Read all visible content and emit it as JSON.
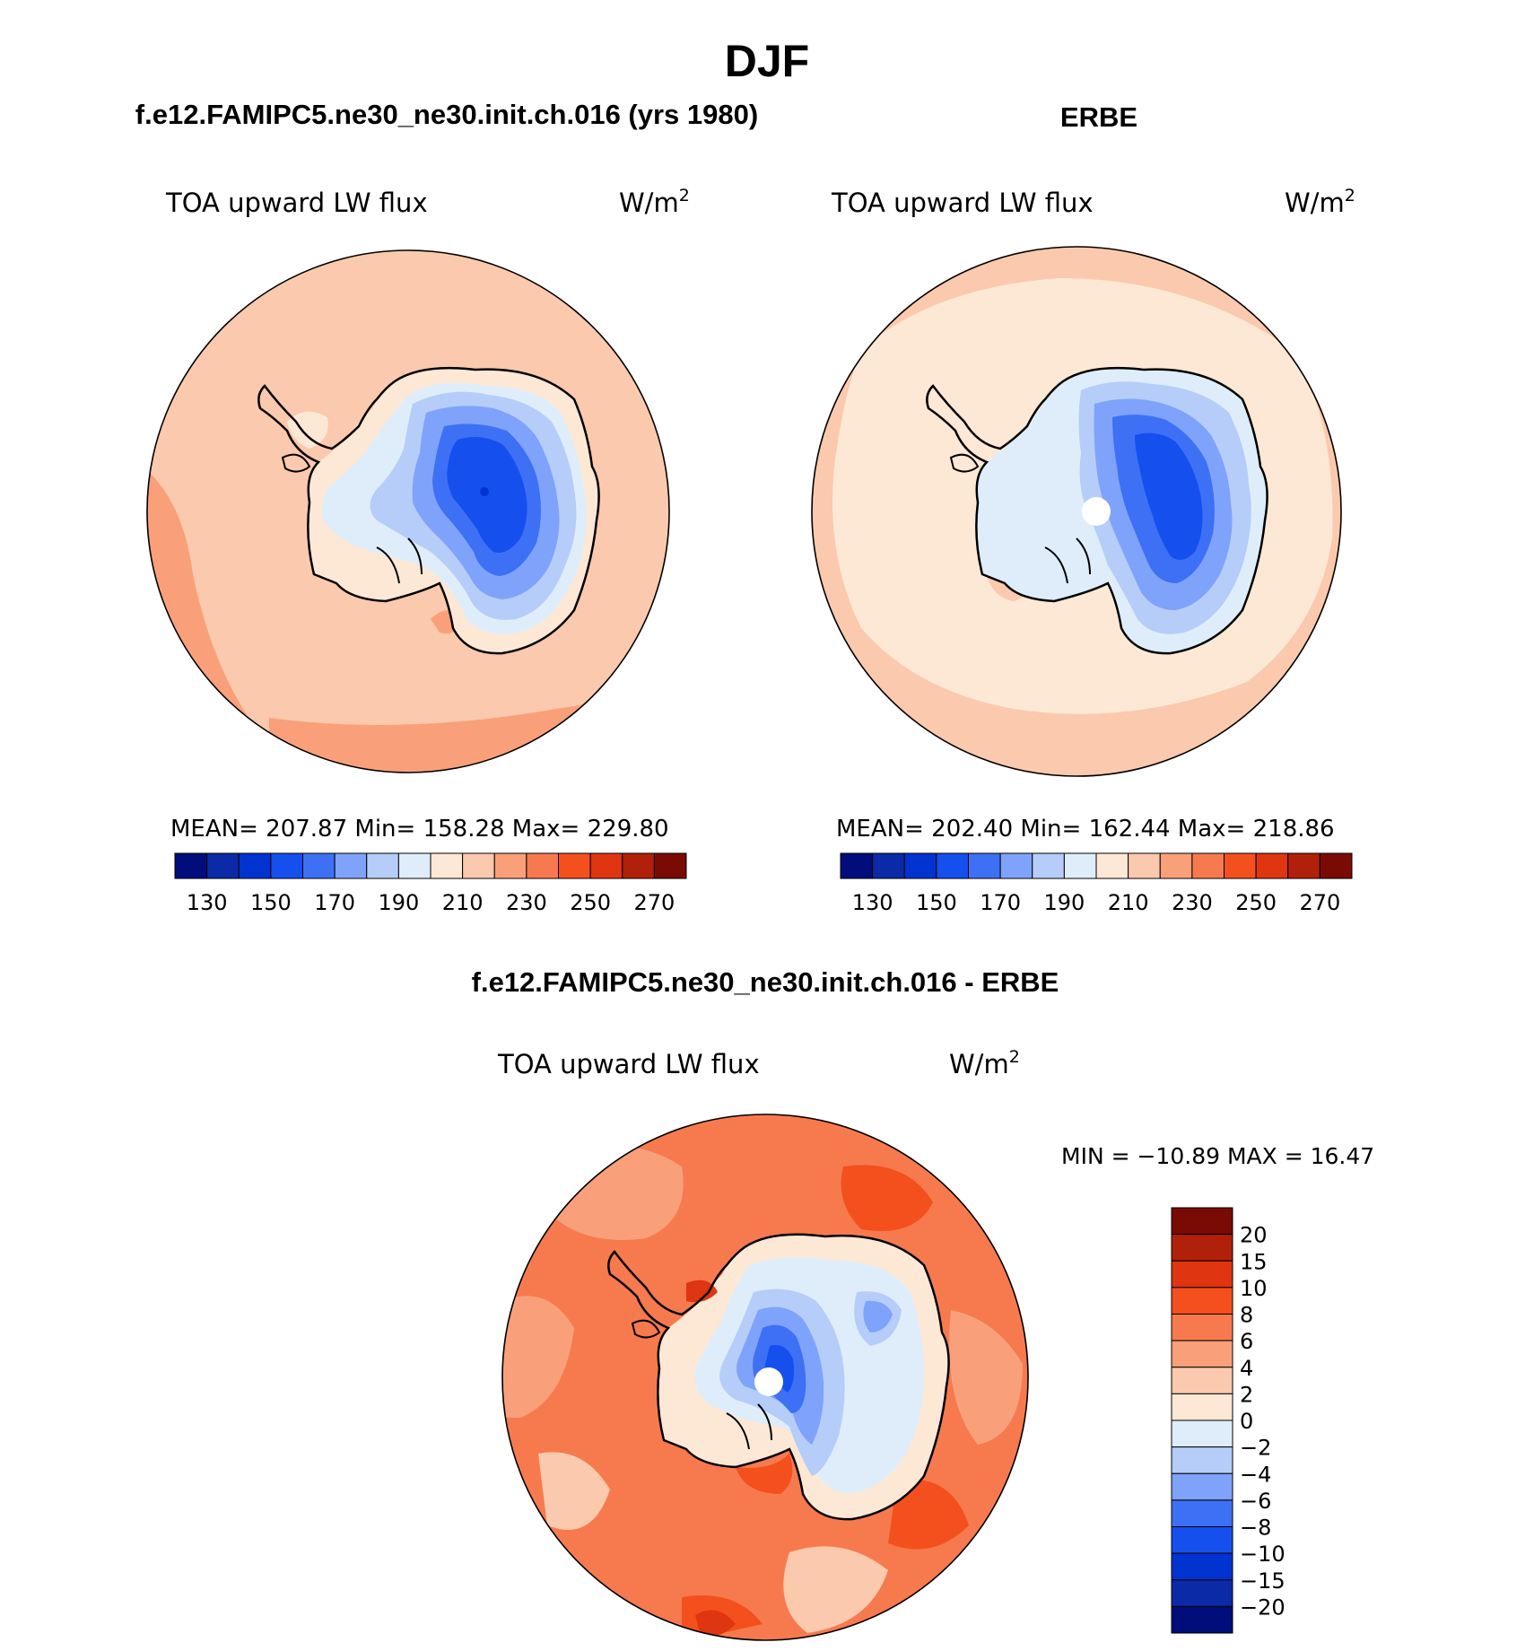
{
  "page": {
    "season": "DJF",
    "left_title": "f.e12.FAMIPC5.ne30_ne30.init.ch.016 (yrs 1980)",
    "right_title": "ERBE",
    "diff_title": "f.e12.FAMIPC5.ne30_ne30.init.ch.016 - ERBE"
  },
  "panels": {
    "model": {
      "variable": "TOA upward LW flux",
      "units": "W/m",
      "units_exp": "2",
      "stats": "MEAN= 207.87   Min= 158.28   Max= 229.80"
    },
    "obs": {
      "variable": "TOA upward LW flux",
      "units": "W/m",
      "units_exp": "2",
      "stats": "MEAN= 202.40   Min= 162.44   Max= 218.86"
    },
    "diff": {
      "variable": "TOA upward LW flux",
      "units": "W/m",
      "units_exp": "2",
      "stats": "MIN = −10.89 MAX =   16.47"
    }
  },
  "colorbars": {
    "abs": {
      "colors": [
        "#000d7a",
        "#0a2aa8",
        "#0033d0",
        "#1550ee",
        "#3d70f5",
        "#7fa3fa",
        "#b5cdf8",
        "#dfedfb",
        "#fde8d6",
        "#fbc9ad",
        "#f9a07a",
        "#f77a4e",
        "#f4501e",
        "#df3510",
        "#b0200a",
        "#7a0a04"
      ],
      "labels": [
        "130",
        "150",
        "170",
        "190",
        "210",
        "230",
        "250",
        "270"
      ]
    },
    "diff": {
      "colors": [
        "#7a0a04",
        "#b0200a",
        "#df3510",
        "#f4501e",
        "#f77a4e",
        "#f9a07a",
        "#fbc9ad",
        "#fde8d6",
        "#dfedfb",
        "#b5cdf8",
        "#7fa3fa",
        "#3d70f5",
        "#1550ee",
        "#0033d0",
        "#0a2aa8",
        "#000d7a"
      ],
      "labels": [
        "20",
        "15",
        "10",
        "8",
        "6",
        "4",
        "2",
        "0",
        "−2",
        "−4",
        "−6",
        "−8",
        "−10",
        "−15",
        "−20"
      ]
    }
  }
}
